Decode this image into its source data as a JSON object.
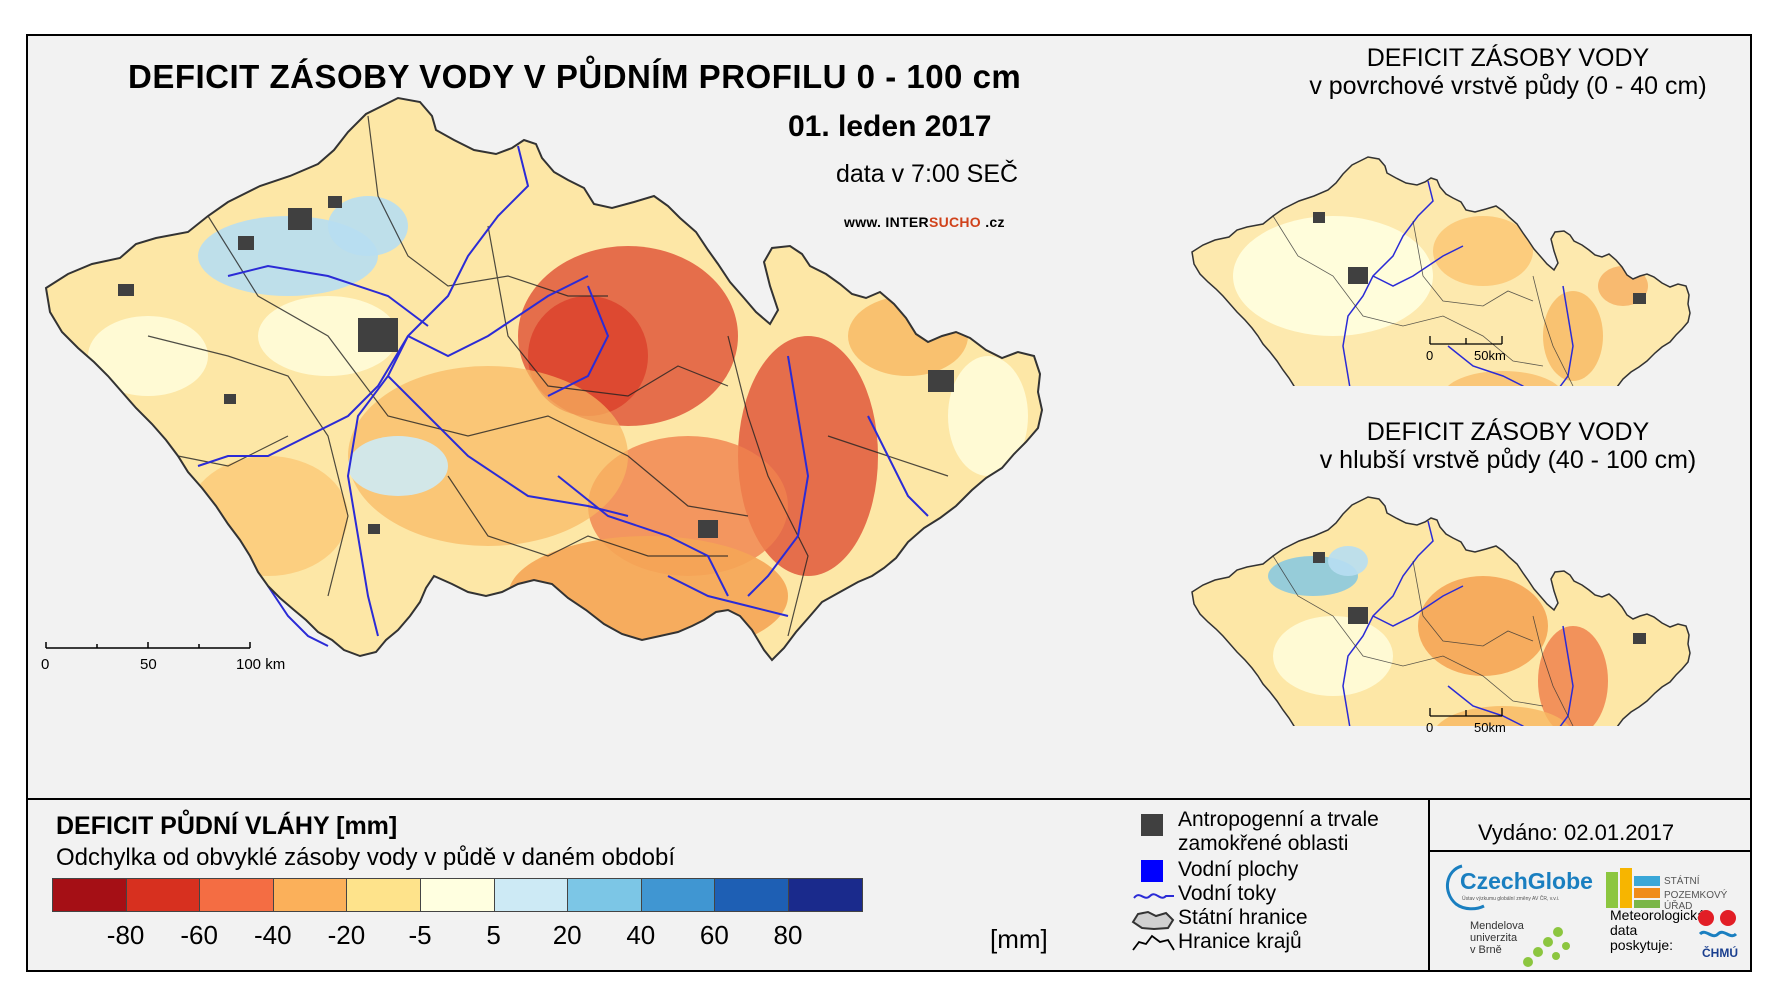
{
  "map": {
    "title": "DEFICIT ZÁSOBY VODY V PŮDNÍM PROFILU 0 - 100 cm",
    "date": "01. leden 2017",
    "subtitle": "data v 7:00 SEČ",
    "website_prefix": "www. INTER",
    "website_accent": "SUCHO",
    "website_suffix": " .cz",
    "scale_labels": [
      "0",
      "50",
      "100 km"
    ]
  },
  "insets": [
    {
      "title_line1": "DEFICIT ZÁSOBY VODY",
      "title_line2": "v povrchové vrstvě půdy (0 - 40 cm)",
      "scale_labels": [
        "0",
        "50km"
      ]
    },
    {
      "title_line1": "DEFICIT ZÁSOBY VODY",
      "title_line2": "v hlubší vrstvě půdy (40 - 100 cm)",
      "scale_labels": [
        "0",
        "50km"
      ]
    }
  ],
  "legend": {
    "title": "DEFICIT PŮDNÍ VLÁHY [mm]",
    "subtitle": "Odchylka od obvyklé zásoby vody v půdě v daném období",
    "colors": [
      "#a50f15",
      "#d7301f",
      "#f46d43",
      "#fbb05a",
      "#fee38b",
      "#ffffe0",
      "#cdeaf5",
      "#7cc6e6",
      "#4096d2",
      "#1e5fb4",
      "#1a2a8c"
    ],
    "ticks": [
      "-80",
      "-60",
      "-40",
      "-20",
      "-5",
      "5",
      "20",
      "40",
      "60",
      "80"
    ],
    "unit": "[mm]"
  },
  "key": {
    "items": [
      {
        "label_line1": "Antropogenní a trvale",
        "label_line2": "zamokřené oblasti",
        "symbol": "dark-square"
      },
      {
        "label_line1": "Vodní plochy",
        "label_line2": "",
        "symbol": "blue-square"
      },
      {
        "label_line1": "Vodní toky",
        "label_line2": "",
        "symbol": "river-line"
      },
      {
        "label_line1": "Státní hranice",
        "label_line2": "",
        "symbol": "state-border"
      },
      {
        "label_line1": "Hranice krajů",
        "label_line2": "",
        "symbol": "region-border"
      }
    ]
  },
  "footer": {
    "issued": "Vydáno: 02.01.2017",
    "czechglobe_name": "CzechGlobe",
    "czechglobe_tag": "Ústav výzkumu globální změny AV ČR, v.v.i.",
    "spu_line1": "STÁTNÍ",
    "spu_line2": "POZEMKOVÝ ÚŘAD",
    "mendel_line1": "Mendelova",
    "mendel_line2": "univerzita",
    "mendel_line3": "v Brně",
    "meteo_line1": "Meteorologická",
    "meteo_line2": "data",
    "meteo_line3": "poskytuje:",
    "chmu": "ČHMÚ"
  },
  "colors": {
    "frame_bg": "#f2f2f2",
    "urban": "#404040",
    "water": "#0000ff",
    "river": "#2b2bd6"
  }
}
